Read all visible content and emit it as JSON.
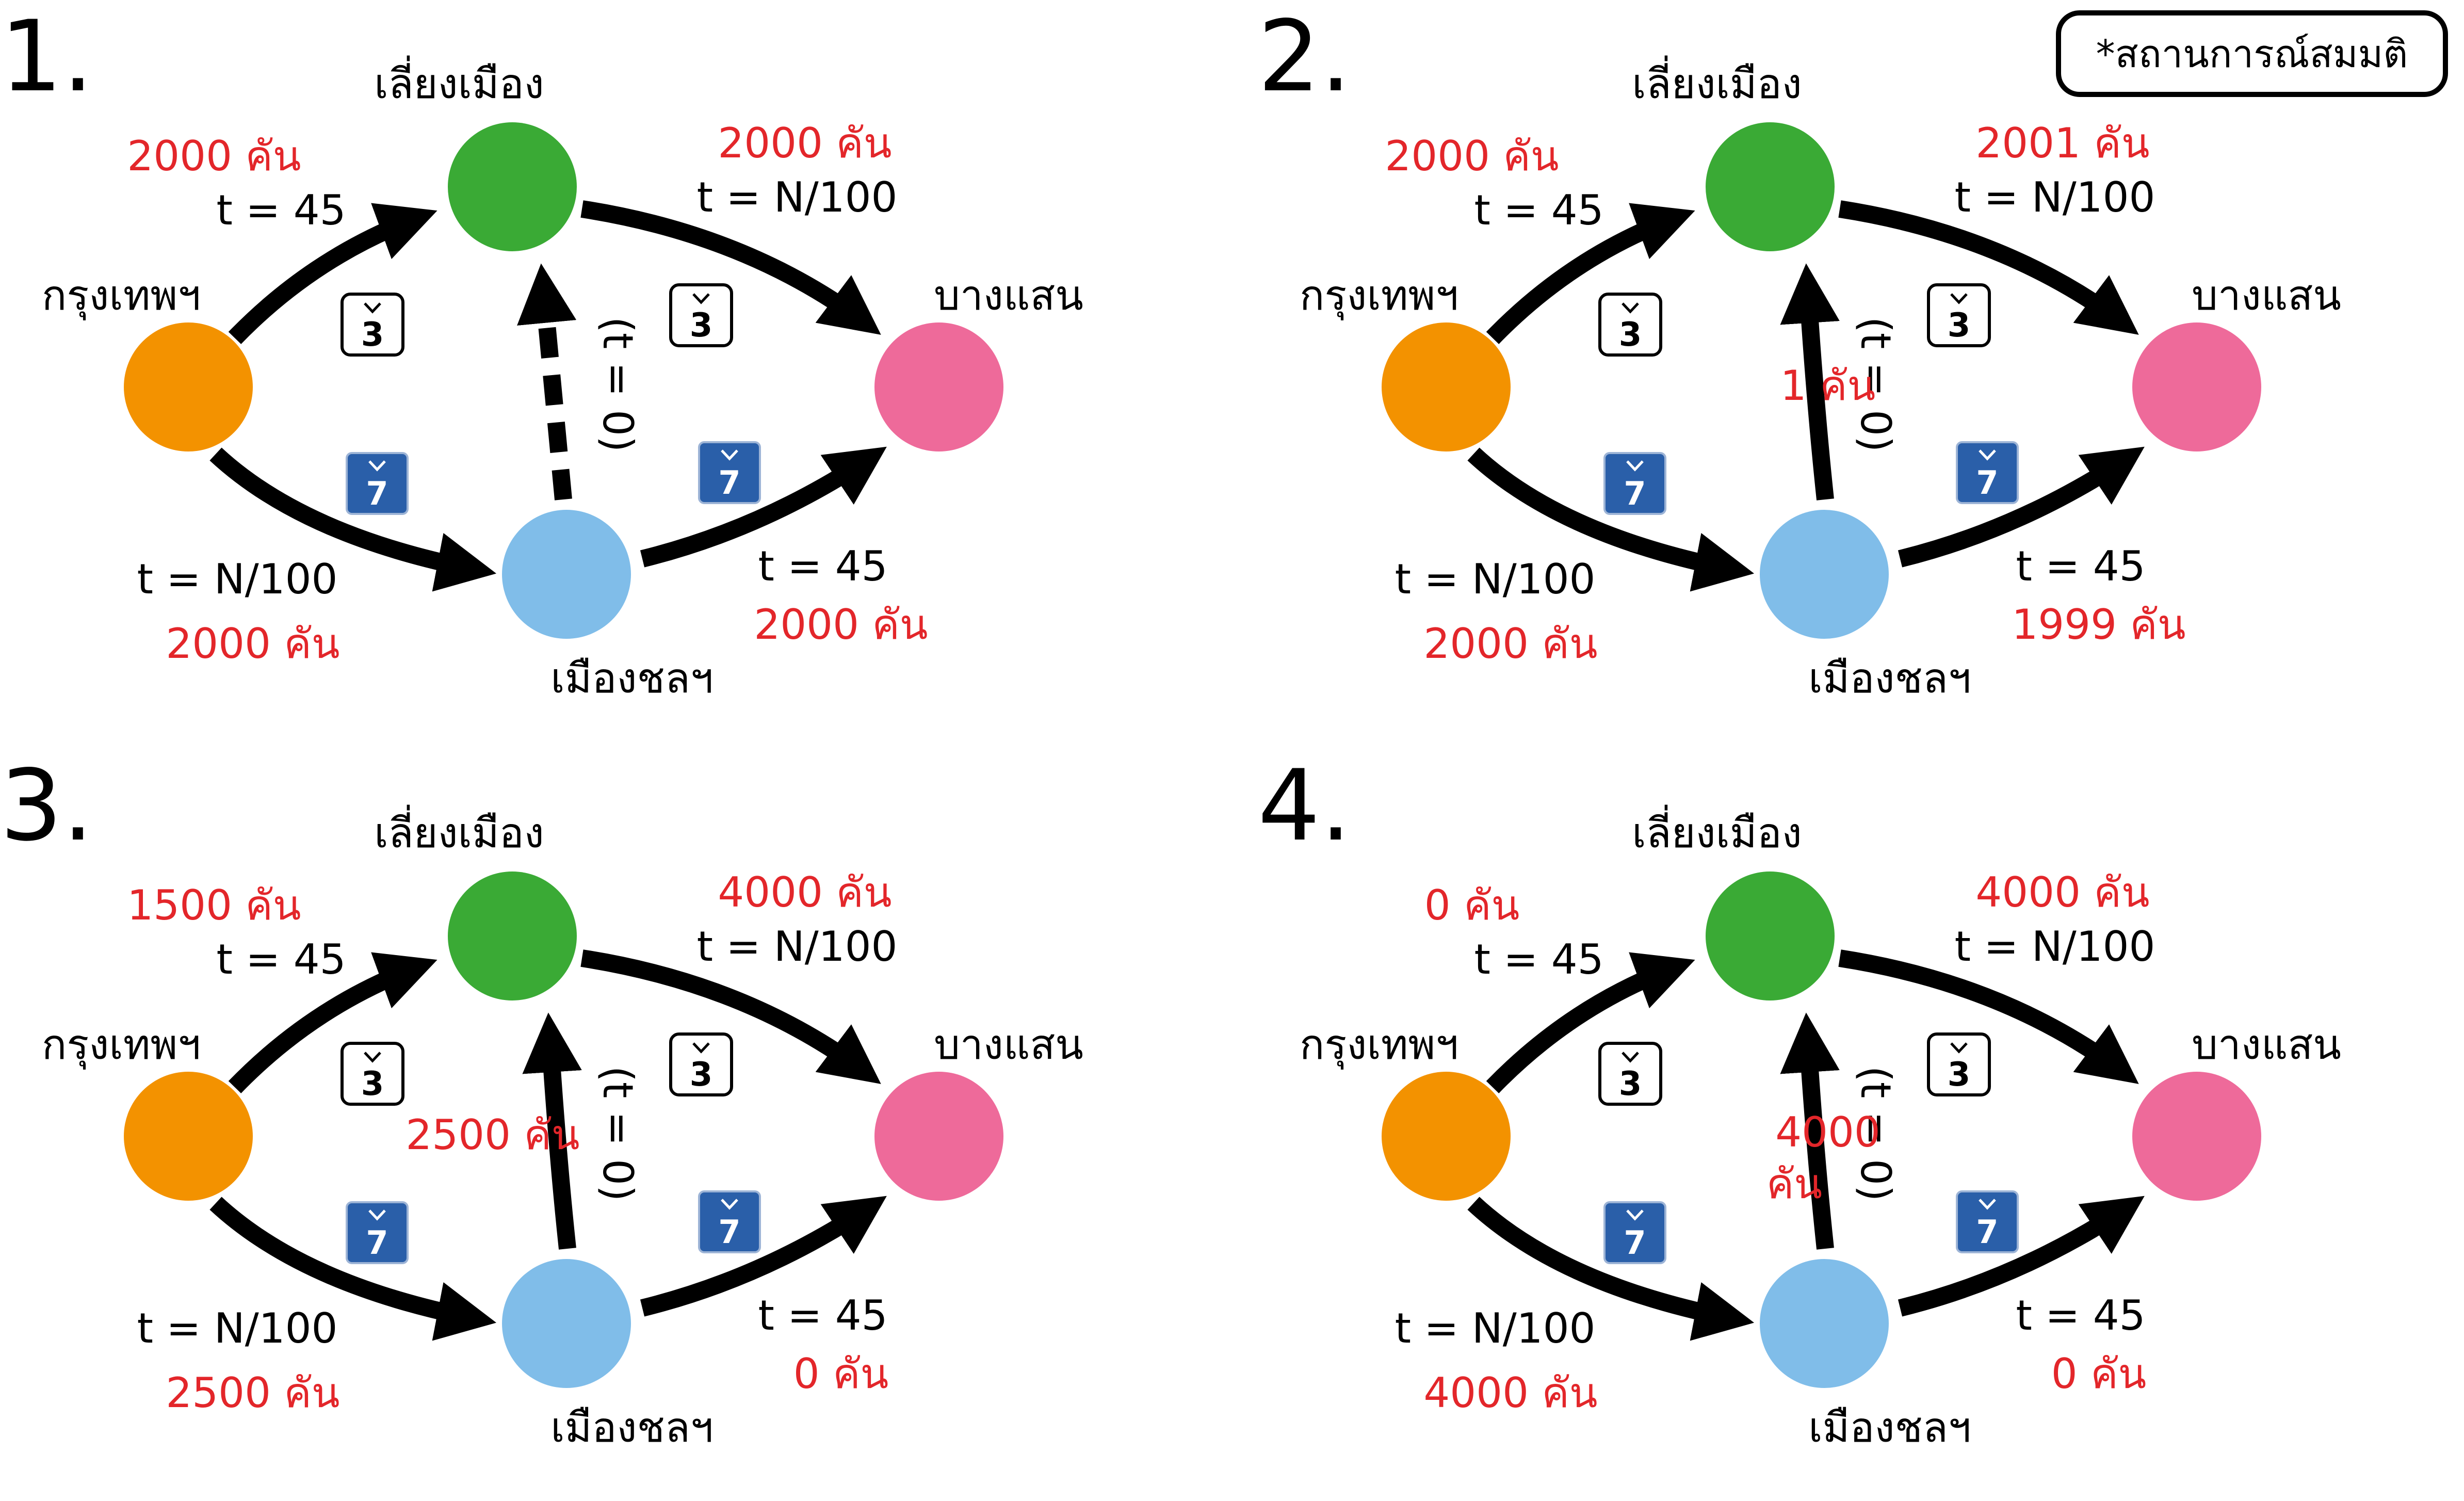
{
  "note": "*สถานการณ์สมมติ",
  "colors": {
    "bangkok": "#f39200",
    "liangmueang": "#3aaa35",
    "chon": "#80bde9",
    "bangsaen": "#ee6a9a",
    "flow_text": "#e3262a",
    "sign7": "#2a5fa9"
  },
  "icons": [
    "route-3-sign",
    "route-7-sign"
  ],
  "route_numbers": {
    "r3": "3",
    "r7": "7"
  },
  "panels": [
    {
      "number": "1.",
      "nodes": {
        "top": "เลี่ยงเมือง",
        "left": "กรุงเทพฯ",
        "right": "บางแสน",
        "bottom": "เมืองชลฯ"
      },
      "middle_edge_dashed": true,
      "labels": {
        "top_left_flow": "2000 คัน",
        "top_left_time": "t = 45",
        "top_right_flow": "2000 คัน",
        "top_right_time": "t = N/100",
        "bottom_left_time": "t = N/100",
        "bottom_left_flow": "2000 คัน",
        "bottom_right_time": "t = 45",
        "bottom_right_flow": "2000 คัน",
        "middle_time": "(t = 0)",
        "middle_flow": ""
      }
    },
    {
      "number": "2.",
      "nodes": {
        "top": "เลี่ยงเมือง",
        "left": "กรุงเทพฯ",
        "right": "บางแสน",
        "bottom": "เมืองชลฯ"
      },
      "middle_edge_dashed": false,
      "labels": {
        "top_left_flow": "2000 คัน",
        "top_left_time": "t = 45",
        "top_right_flow": "2001 คัน",
        "top_right_time": "t = N/100",
        "bottom_left_time": "t = N/100",
        "bottom_left_flow": "2000 คัน",
        "bottom_right_time": "t = 45",
        "bottom_right_flow": "1999 คัน",
        "middle_time": "(t = 0)",
        "middle_flow": "1 คัน"
      }
    },
    {
      "number": "3.",
      "nodes": {
        "top": "เลี่ยงเมือง",
        "left": "กรุงเทพฯ",
        "right": "บางแสน",
        "bottom": "เมืองชลฯ"
      },
      "middle_edge_dashed": false,
      "labels": {
        "top_left_flow": "1500 คัน",
        "top_left_time": "t = 45",
        "top_right_flow": "4000 คัน",
        "top_right_time": "t = N/100",
        "bottom_left_time": "t = N/100",
        "bottom_left_flow": "2500 คัน",
        "bottom_right_time": "t = 45",
        "bottom_right_flow": "0 คัน",
        "middle_time": "(t = 0)",
        "middle_flow": "2500 คัน"
      }
    },
    {
      "number": "4.",
      "nodes": {
        "top": "เลี่ยงเมือง",
        "left": "กรุงเทพฯ",
        "right": "บางแสน",
        "bottom": "เมืองชลฯ"
      },
      "middle_edge_dashed": false,
      "labels": {
        "top_left_flow": "0 คัน",
        "top_left_time": "t = 45",
        "top_right_flow": "4000 คัน",
        "top_right_time": "t = N/100",
        "bottom_left_time": "t = N/100",
        "bottom_left_flow": "4000 คัน",
        "bottom_right_time": "t = 45",
        "bottom_right_flow": "0 คัน",
        "middle_time": "(t = 0)",
        "middle_flow": "4000 คัน"
      }
    }
  ]
}
